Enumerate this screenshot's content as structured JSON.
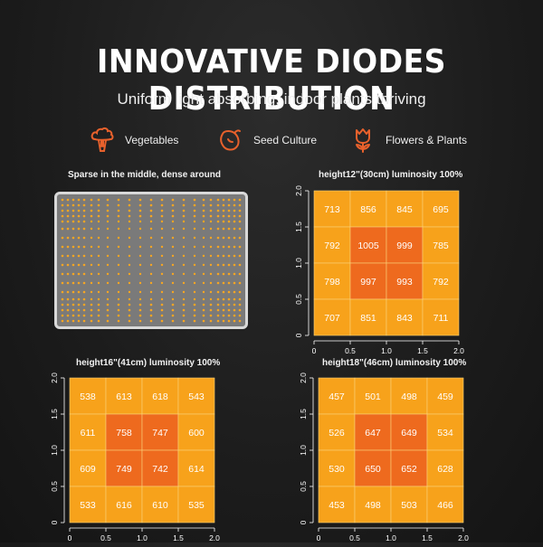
{
  "header": {
    "title": "INNOVATIVE DIODES DISTRIBUTION",
    "subtitle": "Uniform light absorbing, indoor plants thriving"
  },
  "features": [
    {
      "label": "Vegetables",
      "icon": "broccoli-icon"
    },
    {
      "label": "Seed Culture",
      "icon": "seed-icon"
    },
    {
      "label": "Flowers & Plants",
      "icon": "tulip-icon"
    }
  ],
  "colors": {
    "accent": "#e8612c",
    "outer_cell": "#f7a21b",
    "inner_cell": "#ee6a1e",
    "led_dot": "#f6a623",
    "led_panel": "#7a7a7a"
  },
  "led_panel": {
    "title": "Sparse in the middle, dense around"
  },
  "chart_data": [
    {
      "type": "heatmap",
      "title": "height12\"(30cm)  luminosity 100%",
      "xlim": [
        0,
        2.0
      ],
      "ylim": [
        0,
        2.0
      ],
      "xticks": [
        "0",
        "0.5",
        "1.0",
        "1.5",
        "2.0"
      ],
      "yticks": [
        "0",
        "0.5",
        "1.0",
        "1.5",
        "2.0"
      ],
      "grid": [
        [
          713,
          856,
          845,
          695
        ],
        [
          792,
          1005,
          999,
          785
        ],
        [
          798,
          997,
          993,
          792
        ],
        [
          707,
          851,
          843,
          711
        ]
      ]
    },
    {
      "type": "heatmap",
      "title": "height16\"(41cm)  luminosity 100%",
      "xlim": [
        0,
        2.0
      ],
      "ylim": [
        0,
        2.0
      ],
      "xticks": [
        "0",
        "0.5",
        "1.0",
        "1.5",
        "2.0"
      ],
      "yticks": [
        "0",
        "0.5",
        "1.0",
        "1.5",
        "2.0"
      ],
      "grid": [
        [
          538,
          613,
          618,
          543
        ],
        [
          611,
          758,
          747,
          600
        ],
        [
          609,
          749,
          742,
          614
        ],
        [
          533,
          616,
          610,
          535
        ]
      ]
    },
    {
      "type": "heatmap",
      "title": "height18\"(46cm)  luminosity 100%",
      "xlim": [
        0,
        2.0
      ],
      "ylim": [
        0,
        2.0
      ],
      "xticks": [
        "0",
        "0.5",
        "1.0",
        "1.5",
        "2.0"
      ],
      "yticks": [
        "0",
        "0.5",
        "1.0",
        "1.5",
        "2.0"
      ],
      "grid": [
        [
          457,
          501,
          498,
          459
        ],
        [
          526,
          647,
          649,
          534
        ],
        [
          530,
          650,
          652,
          628
        ],
        [
          453,
          498,
          503,
          466
        ]
      ]
    }
  ]
}
